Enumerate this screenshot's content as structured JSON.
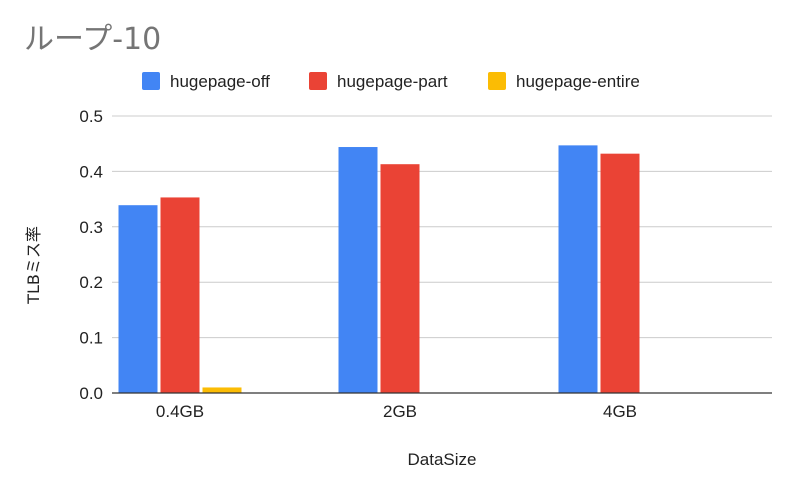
{
  "chart_data": {
    "type": "bar",
    "title": "ループ-10",
    "xlabel": "DataSize",
    "ylabel": "TLBミス率",
    "categories": [
      "0.4GB",
      "2GB",
      "4GB"
    ],
    "series": [
      {
        "name": "hugepage-off",
        "color": "#4285f4",
        "values": [
          0.339,
          0.444,
          0.447
        ]
      },
      {
        "name": "hugepage-part",
        "color": "#ea4335",
        "values": [
          0.353,
          0.413,
          0.432
        ]
      },
      {
        "name": "hugepage-entire",
        "color": "#fbbc04",
        "values": [
          0.01,
          0,
          0
        ]
      }
    ],
    "ylim": [
      0,
      0.5
    ],
    "yticks": [
      "0.0",
      "0.1",
      "0.2",
      "0.3",
      "0.4",
      "0.5"
    ],
    "grid": true,
    "legend_position": "top"
  }
}
